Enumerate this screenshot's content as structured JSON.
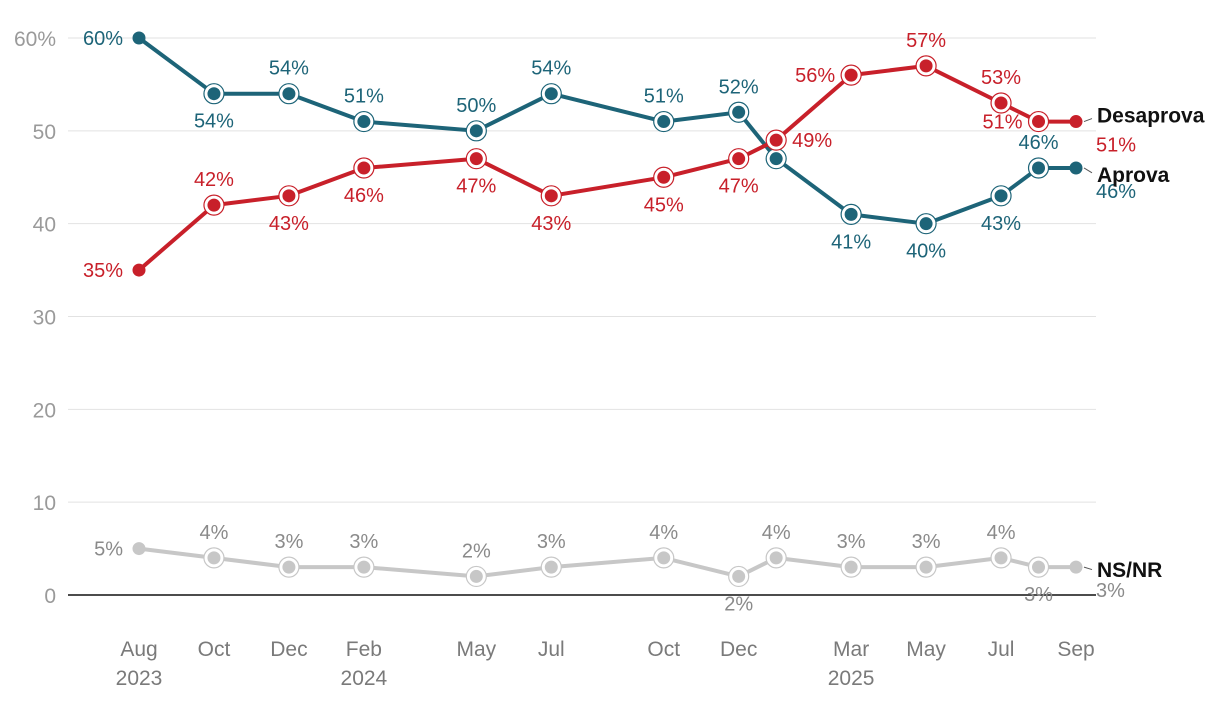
{
  "chart_data": {
    "type": "line",
    "title": "",
    "xlabel": "",
    "ylabel": "",
    "ylim": [
      0,
      60
    ],
    "yticks": [
      0,
      10,
      20,
      30,
      40,
      50,
      60
    ],
    "ytick_labels": [
      "0",
      "10",
      "20",
      "30",
      "40",
      "50",
      "60%"
    ],
    "grid": true,
    "x_dates": [
      "2023-08",
      "2023-10",
      "2023-12",
      "2024-02",
      "2024-05",
      "2024-07",
      "2024-10",
      "2024-12",
      "2025-01",
      "2025-03",
      "2025-05",
      "2025-07",
      "2025-08",
      "2025-09"
    ],
    "x_ticks": [
      {
        "date": "2023-08",
        "month": "Aug",
        "year": "2023"
      },
      {
        "date": "2023-10",
        "month": "Oct",
        "year": ""
      },
      {
        "date": "2023-12",
        "month": "Dec",
        "year": ""
      },
      {
        "date": "2024-02",
        "month": "Feb",
        "year": "2024"
      },
      {
        "date": "2024-05",
        "month": "May",
        "year": ""
      },
      {
        "date": "2024-07",
        "month": "Jul",
        "year": ""
      },
      {
        "date": "2024-10",
        "month": "Oct",
        "year": ""
      },
      {
        "date": "2024-12",
        "month": "Dec",
        "year": ""
      },
      {
        "date": "2025-03",
        "month": "Mar",
        "year": "2025"
      },
      {
        "date": "2025-05",
        "month": "May",
        "year": ""
      },
      {
        "date": "2025-07",
        "month": "Jul",
        "year": ""
      },
      {
        "date": "2025-09",
        "month": "Sep",
        "year": ""
      }
    ],
    "series": [
      {
        "name": "Aprova",
        "color": "#1d6478",
        "values": [
          60,
          54,
          54,
          51,
          50,
          54,
          51,
          52,
          47,
          41,
          40,
          43,
          46,
          46
        ],
        "labels": [
          "60%",
          "54%",
          "54%",
          "51%",
          "50%",
          "54%",
          "51%",
          "52%",
          "",
          "41%",
          "40%",
          "43%",
          "46%",
          "46%"
        ],
        "label_pos": [
          "left",
          "below",
          "above",
          "above",
          "above",
          "above",
          "above",
          "above",
          "",
          "below",
          "below",
          "below",
          "above",
          "below-right"
        ]
      },
      {
        "name": "Desaprova",
        "color": "#c8202a",
        "values": [
          35,
          42,
          43,
          46,
          47,
          43,
          45,
          47,
          49,
          56,
          57,
          53,
          51,
          51
        ],
        "labels": [
          "35%",
          "42%",
          "43%",
          "46%",
          "47%",
          "43%",
          "45%",
          "47%",
          "49%",
          "56%",
          "57%",
          "53%",
          "51%",
          "51%"
        ],
        "label_pos": [
          "left",
          "above",
          "below",
          "below",
          "below",
          "below",
          "below",
          "below",
          "right",
          "left",
          "above",
          "above",
          "left",
          "below-right"
        ]
      },
      {
        "name": "NS/NR",
        "color": "#c7c7c7",
        "label_color": "#8a8a8a",
        "values": [
          5,
          4,
          3,
          3,
          2,
          3,
          4,
          2,
          4,
          3,
          3,
          4,
          3,
          3
        ],
        "labels": [
          "5%",
          "4%",
          "3%",
          "3%",
          "2%",
          "3%",
          "4%",
          "2%",
          "4%",
          "3%",
          "3%",
          "4%",
          "3%",
          "3%"
        ],
        "label_pos": [
          "left",
          "above",
          "above",
          "above",
          "above",
          "above",
          "above",
          "below",
          "above",
          "above",
          "above",
          "above",
          "below",
          "below-right"
        ]
      }
    ]
  }
}
